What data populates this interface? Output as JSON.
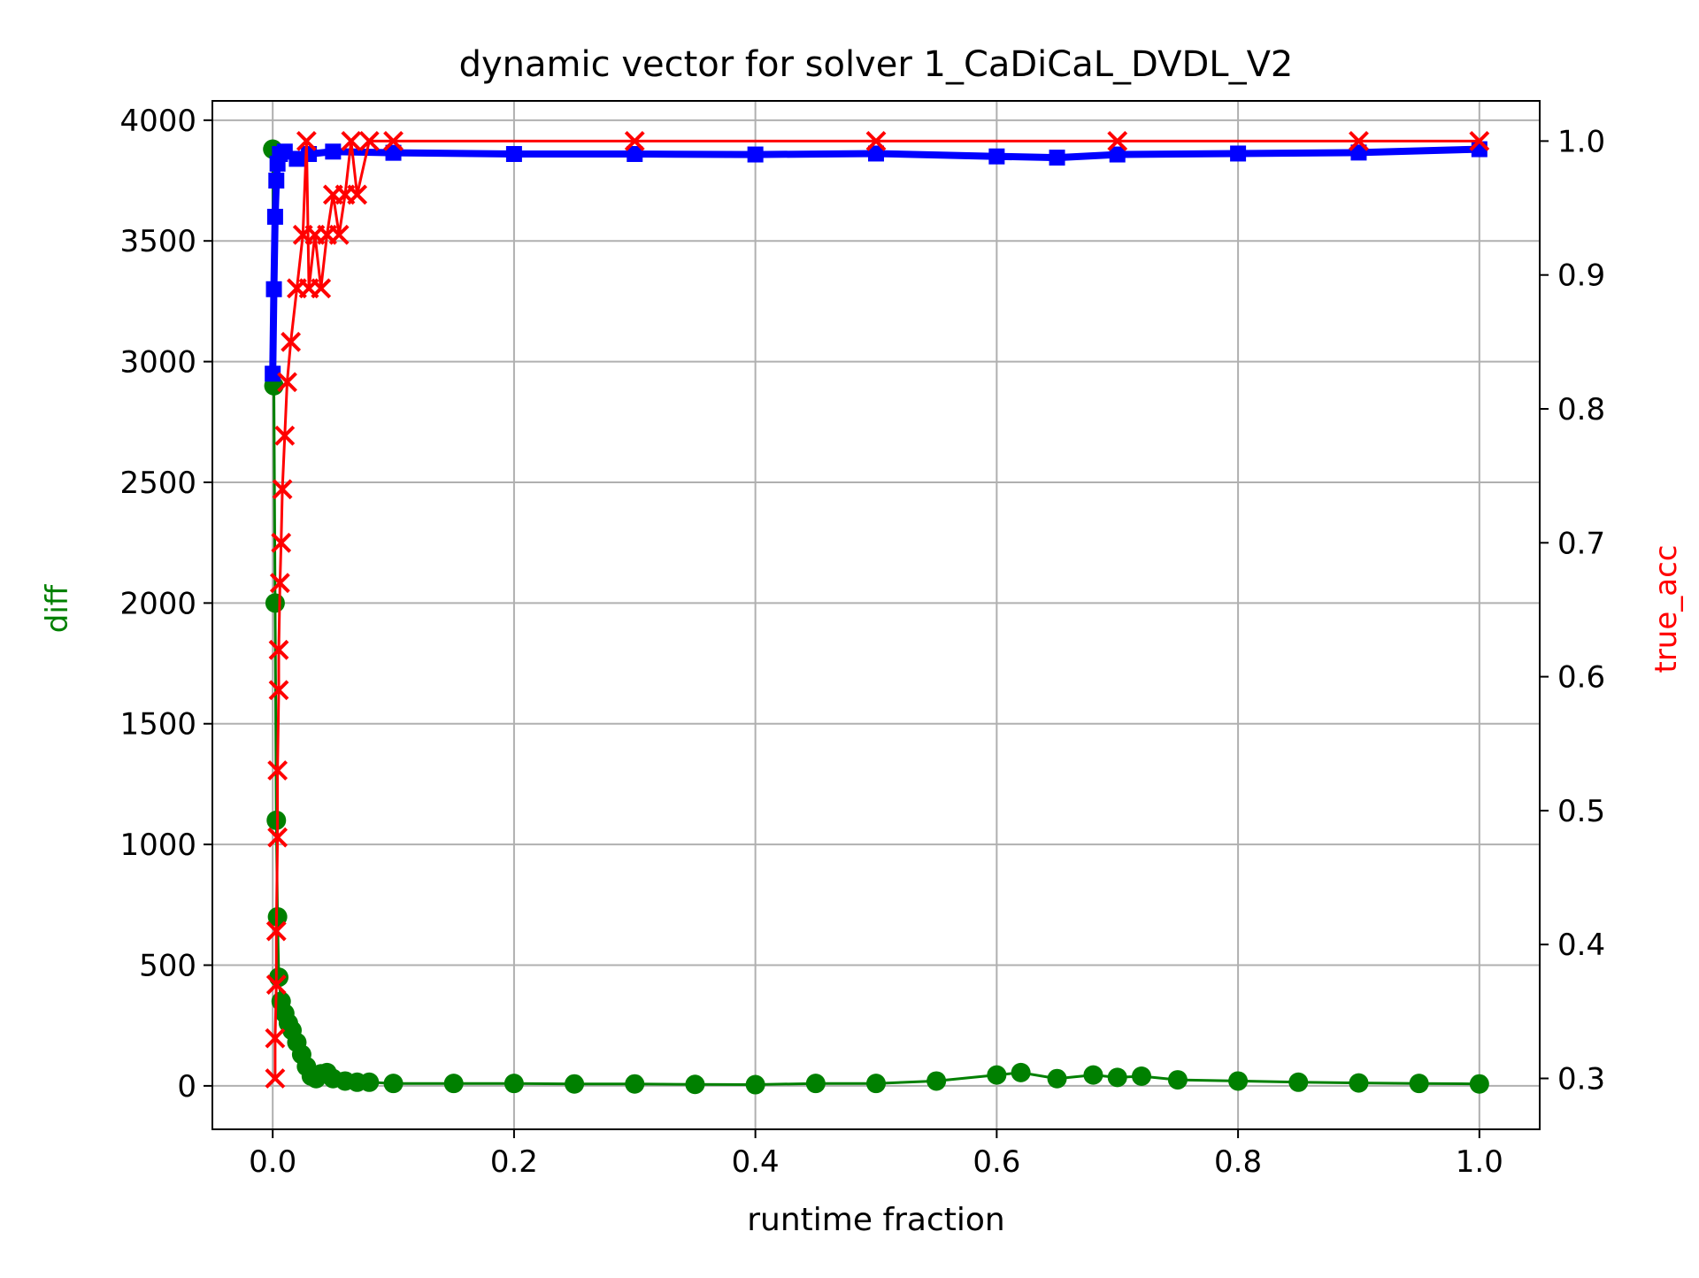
{
  "chart_data": {
    "type": "line",
    "title": "dynamic vector for solver 1_CaDiCaL_DVDL_V2",
    "xlabel": "runtime fraction",
    "ylabel": "diff",
    "y2label": "true_acc",
    "xlim": [
      -0.05,
      1.05
    ],
    "ylim": [
      -180,
      4080
    ],
    "y2lim": [
      0.262,
      1.03
    ],
    "xticks": [
      0.0,
      0.2,
      0.4,
      0.6,
      0.8,
      1.0
    ],
    "xtick_labels": [
      "0.0",
      "0.2",
      "0.4",
      "0.6",
      "0.8",
      "1.0"
    ],
    "yticks": [
      0,
      500,
      1000,
      1500,
      2000,
      2500,
      3000,
      3500,
      4000
    ],
    "ytick_labels": [
      "0",
      "500",
      "1000",
      "1500",
      "2000",
      "2500",
      "3000",
      "3500",
      "4000"
    ],
    "y2ticks": [
      0.3,
      0.4,
      0.5,
      0.6,
      0.7,
      0.8,
      0.9,
      1.0
    ],
    "y2tick_labels": [
      "0.3",
      "0.4",
      "0.5",
      "0.6",
      "0.7",
      "0.8",
      "0.9",
      "1.0"
    ],
    "grid": true,
    "colors": {
      "diff": "#008000",
      "upper": "#0000ff",
      "true_acc": "#ff0000"
    },
    "series": [
      {
        "axis": "left",
        "color": "#008000",
        "marker": "circle",
        "x": [
          0.0,
          0.001,
          0.002,
          0.003,
          0.004,
          0.005,
          0.007,
          0.01,
          0.013,
          0.016,
          0.02,
          0.024,
          0.028,
          0.032,
          0.036,
          0.04,
          0.045,
          0.05,
          0.06,
          0.07,
          0.08,
          0.1,
          0.15,
          0.2,
          0.25,
          0.3,
          0.35,
          0.4,
          0.45,
          0.5,
          0.55,
          0.6,
          0.62,
          0.65,
          0.68,
          0.7,
          0.72,
          0.75,
          0.8,
          0.85,
          0.9,
          0.95,
          1.0
        ],
        "y": [
          3880,
          2900,
          2000,
          1100,
          700,
          450,
          350,
          300,
          260,
          230,
          180,
          130,
          80,
          40,
          30,
          50,
          55,
          30,
          20,
          15,
          15,
          10,
          10,
          10,
          8,
          8,
          6,
          5,
          10,
          10,
          20,
          45,
          55,
          30,
          45,
          35,
          40,
          25,
          20,
          15,
          12,
          10,
          8
        ]
      },
      {
        "axis": "left",
        "color": "#0000ff",
        "marker": "square",
        "x": [
          0.0,
          0.001,
          0.002,
          0.003,
          0.004,
          0.006,
          0.01,
          0.02,
          0.03,
          0.05,
          0.1,
          0.2,
          0.3,
          0.4,
          0.5,
          0.6,
          0.65,
          0.7,
          0.8,
          0.9,
          1.0
        ],
        "y": [
          2950,
          3300,
          3600,
          3750,
          3820,
          3860,
          3870,
          3840,
          3860,
          3870,
          3865,
          3860,
          3860,
          3858,
          3862,
          3850,
          3845,
          3858,
          3862,
          3866,
          3880
        ]
      },
      {
        "axis": "right",
        "color": "#ff0000",
        "marker": "x",
        "x": [
          0.002,
          0.002,
          0.003,
          0.003,
          0.004,
          0.004,
          0.005,
          0.005,
          0.006,
          0.007,
          0.008,
          0.01,
          0.012,
          0.015,
          0.02,
          0.025,
          0.028,
          0.03,
          0.035,
          0.04,
          0.045,
          0.05,
          0.055,
          0.06,
          0.065,
          0.07,
          0.08,
          0.1,
          0.3,
          0.5,
          0.7,
          0.9,
          1.0
        ],
        "y": [
          0.3,
          0.33,
          0.37,
          0.41,
          0.48,
          0.53,
          0.59,
          0.62,
          0.67,
          0.7,
          0.74,
          0.78,
          0.82,
          0.85,
          0.89,
          0.93,
          1.0,
          0.89,
          0.93,
          0.89,
          0.93,
          0.96,
          0.93,
          0.96,
          1.0,
          0.96,
          1.0,
          1.0,
          1.0,
          1.0,
          1.0,
          1.0,
          1.0
        ]
      }
    ]
  }
}
